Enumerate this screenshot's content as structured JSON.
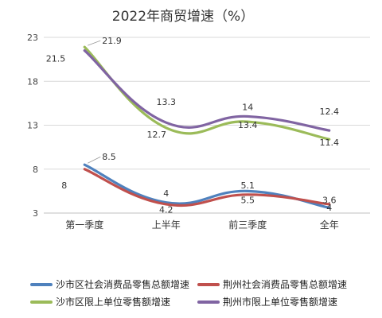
{
  "chart_data": {
    "type": "line",
    "title": "2022年商贸增速（%）",
    "categories": [
      "第一季度",
      "上半年",
      "前三季度",
      "全年"
    ],
    "ylim": [
      3,
      23
    ],
    "yticks": [
      3,
      8,
      13,
      18,
      23
    ],
    "grid": true,
    "legend_position": "bottom",
    "series": [
      {
        "name": "沙市区社会消费品零售总额增速",
        "color": "#4f81bd",
        "values": [
          8.5,
          4.2,
          5.5,
          3.6
        ],
        "labels": [
          "8.5",
          "4.2",
          "5.5",
          "3.6"
        ]
      },
      {
        "name": "荆州社会消费品零售总额增速",
        "color": "#c0504d",
        "values": [
          8,
          4,
          5.1,
          4
        ],
        "labels": [
          "8",
          "4",
          "5.1",
          "4"
        ]
      },
      {
        "name": "沙市区限上单位零售额增速",
        "color": "#9bbb59",
        "values": [
          21.9,
          12.7,
          13.4,
          11.4
        ],
        "labels": [
          "21.9",
          "12.7",
          "13.4",
          "11.4"
        ]
      },
      {
        "name": "荆州市限上单位零售额增速",
        "color": "#8064a2",
        "values": [
          21.5,
          13.3,
          14,
          12.4
        ],
        "labels": [
          "21.5",
          "13.3",
          "14",
          "12.4"
        ]
      }
    ]
  }
}
